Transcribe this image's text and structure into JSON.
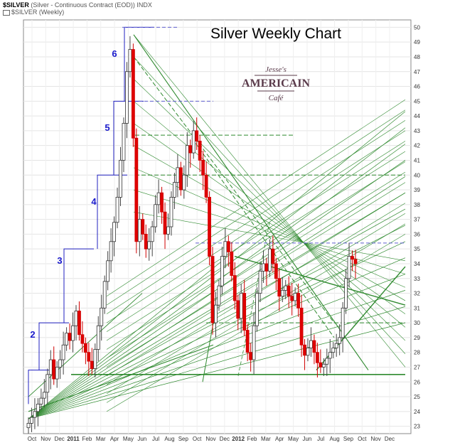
{
  "header": {
    "symbol": "$SILVER",
    "description": "(Silver - Continuous Contract (EOD))",
    "exchange": "INDX",
    "legend": "$SILVER (Weekly)"
  },
  "watermark": {
    "line1": "Jesse's",
    "line2": "AMERICAIN",
    "line3": "Café"
  },
  "chart_data": {
    "type": "candlestick",
    "title": "Silver Weekly Chart",
    "xlabel": "",
    "ylabel": "",
    "ylim": [
      22.5,
      50.5
    ],
    "y_ticks": [
      23,
      24,
      25,
      26,
      27,
      28,
      29,
      30,
      31,
      32,
      33,
      34,
      35,
      36,
      37,
      38,
      39,
      40,
      41,
      42,
      43,
      44,
      45,
      46,
      47,
      48,
      49,
      50
    ],
    "x_ticks": [
      "Oct",
      "Nov",
      "Dec",
      "2011",
      "Feb",
      "Mar",
      "Apr",
      "May",
      "Jun",
      "Jul",
      "Aug",
      "Sep",
      "Oct",
      "Nov",
      "Dec",
      "2012",
      "Feb",
      "Mar",
      "Apr",
      "May",
      "Jun",
      "Jul",
      "Aug",
      "Sep",
      "Oct",
      "Nov",
      "Dec"
    ],
    "wave_labels": [
      "2",
      "3",
      "4",
      "5",
      "6"
    ],
    "grid": true,
    "weekly_close": [
      23.2,
      23.6,
      24.0,
      24.5,
      24.9,
      25.3,
      26.5,
      27.5,
      26.2,
      27.0,
      27.5,
      28.5,
      29.3,
      28.8,
      29.8,
      30.8,
      29.2,
      28.6,
      28.0,
      27.4,
      26.9,
      28.2,
      29.8,
      31.0,
      32.8,
      34.2,
      35.5,
      36.8,
      38.5,
      41.0,
      43.5,
      47.0,
      48.5,
      42.5,
      35.5,
      37.0,
      36.0,
      35.0,
      35.5,
      36.5,
      38.0,
      38.8,
      37.5,
      36.0,
      36.5,
      38.5,
      39.5,
      40.5,
      39.0,
      40.0,
      42.0,
      41.5,
      43.0,
      42.3,
      41.0,
      40.0,
      38.5,
      34.5,
      30.0,
      31.2,
      32.5,
      34.5,
      35.5,
      34.8,
      33.2,
      31.5,
      30.3,
      32.0,
      29.5,
      28.0,
      27.5,
      29.8,
      32.0,
      33.5,
      34.0,
      33.5,
      35.0,
      34.0,
      33.0,
      31.8,
      32.2,
      32.5,
      31.8,
      31.5,
      32.0,
      31.0,
      28.5,
      27.8,
      28.3,
      28.8,
      28.0,
      27.3,
      27.0,
      27.2,
      27.6,
      28.0,
      28.3,
      28.6,
      29.0,
      31.0,
      33.0,
      34.5,
      34.3,
      34.0
    ]
  }
}
